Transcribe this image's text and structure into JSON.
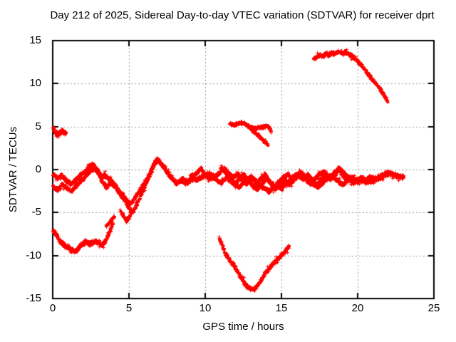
{
  "chart_data": {
    "type": "scatter",
    "title": "Day 212 of 2025, Sidereal Day-to-day VTEC variation (SDTVAR) for receiver dprt",
    "xlabel": "GPS time / hours",
    "ylabel": "SDTVAR / TECUs",
    "xlim": [
      0,
      25
    ],
    "ylim": [
      -15,
      15
    ],
    "x_ticks": [
      0,
      5,
      10,
      15,
      20,
      25
    ],
    "y_ticks": [
      15,
      10,
      5,
      0,
      -5,
      -10,
      -15
    ],
    "x_tick_labels": [
      "0",
      "5",
      "10",
      "15",
      "20",
      "25"
    ],
    "y_tick_labels": [
      "15",
      "10",
      "5",
      "0",
      "-5",
      "-10",
      "-15"
    ],
    "grid": true,
    "legend": "none",
    "marker": "plus",
    "color": "#ff0000",
    "grid_color": "#9a9a9a",
    "axis_color": "#000000",
    "background": "#ffffff",
    "series": [
      {
        "name": "blob-plus4p5",
        "spread": 0.28,
        "points": [
          [
            0,
            4.9
          ],
          [
            0.15,
            4.4
          ],
          [
            0.3,
            4.0
          ],
          [
            0.45,
            4.4
          ],
          [
            0.6,
            4.5
          ],
          [
            0.75,
            4.3
          ],
          [
            0.85,
            4.2
          ]
        ]
      },
      {
        "name": "band-main",
        "spread": 0.24,
        "points": [
          [
            0,
            -0.5
          ],
          [
            0.3,
            -1.0
          ],
          [
            0.6,
            -0.7
          ],
          [
            0.9,
            -1.3
          ],
          [
            1.2,
            -1.6
          ],
          [
            1.5,
            -1.2
          ],
          [
            1.8,
            -0.6
          ],
          [
            2.1,
            -0.2
          ],
          [
            2.4,
            0.4
          ],
          [
            2.6,
            0.7
          ],
          [
            2.8,
            0.3
          ],
          [
            3.0,
            -0.2
          ],
          [
            3.2,
            -0.9
          ],
          [
            3.4,
            -0.6
          ],
          [
            3.7,
            -1.1
          ],
          [
            4.0,
            -1.6
          ],
          [
            4.3,
            -2.3
          ],
          [
            4.6,
            -3.0
          ],
          [
            4.9,
            -3.7
          ],
          [
            5.1,
            -3.9
          ],
          [
            5.4,
            -3.2
          ],
          [
            5.7,
            -2.3
          ],
          [
            6.0,
            -1.5
          ],
          [
            6.3,
            -0.6
          ],
          [
            6.6,
            0.6
          ],
          [
            6.8,
            1.3
          ],
          [
            7.0,
            1.0
          ],
          [
            7.3,
            0.2
          ],
          [
            7.6,
            -0.6
          ],
          [
            7.9,
            -1.2
          ],
          [
            8.2,
            -1.5
          ],
          [
            8.5,
            -1.0
          ],
          [
            8.8,
            -1.4
          ],
          [
            9.1,
            -0.9
          ],
          [
            9.4,
            -0.4
          ],
          [
            9.7,
            0.2
          ],
          [
            10.0,
            -0.6
          ],
          [
            10.3,
            -1.1
          ],
          [
            10.6,
            -0.7
          ],
          [
            10.9,
            -0.4
          ],
          [
            11.2,
            0.2
          ],
          [
            11.5,
            -0.3
          ],
          [
            11.8,
            -0.9
          ],
          [
            12.1,
            -0.4
          ],
          [
            12.4,
            -1.1
          ],
          [
            12.7,
            -1.7
          ],
          [
            13.0,
            -0.9
          ],
          [
            13.3,
            -1.6
          ],
          [
            13.6,
            -1.1
          ],
          [
            13.9,
            -0.5
          ],
          [
            14.2,
            -1.3
          ],
          [
            14.5,
            -2.0
          ],
          [
            14.8,
            -1.4
          ],
          [
            15.1,
            -0.8
          ],
          [
            15.4,
            -0.5
          ],
          [
            15.7,
            -1.3
          ],
          [
            16.0,
            -0.6
          ],
          [
            16.3,
            -0.3
          ],
          [
            16.6,
            -1.1
          ],
          [
            16.9,
            -1.7
          ],
          [
            17.2,
            -1.0
          ],
          [
            17.5,
            -0.4
          ],
          [
            17.8,
            -0.2
          ],
          [
            18.1,
            -0.9
          ],
          [
            18.4,
            -0.4
          ],
          [
            18.7,
            0.1
          ],
          [
            19.0,
            -0.6
          ],
          [
            19.3,
            -1.1
          ],
          [
            19.6,
            -0.8
          ],
          [
            19.9,
            -1.2
          ],
          [
            20.2,
            -0.9
          ],
          [
            20.5,
            -1.2
          ],
          [
            20.8,
            -0.8
          ],
          [
            21.1,
            -1.1
          ],
          [
            21.4,
            -0.8
          ],
          [
            21.7,
            -0.5
          ],
          [
            22.0,
            -0.3
          ],
          [
            22.3,
            -0.6
          ],
          [
            22.6,
            -0.8
          ],
          [
            23.0,
            -0.8
          ]
        ]
      },
      {
        "name": "band-strand2",
        "spread": 0.24,
        "points": [
          [
            0,
            -1.9
          ],
          [
            0.3,
            -2.4
          ],
          [
            0.6,
            -1.7
          ],
          [
            0.9,
            -2.1
          ],
          [
            1.2,
            -2.5
          ],
          [
            1.5,
            -1.9
          ],
          [
            1.8,
            -1.3
          ],
          [
            2.1,
            -0.8
          ],
          [
            2.4,
            -0.2
          ],
          [
            2.7,
            0.2
          ],
          [
            3.0,
            -0.5
          ],
          [
            3.2,
            -1.3
          ],
          [
            3.5,
            -2.0
          ],
          [
            3.8,
            -1.5
          ],
          [
            4.1,
            -2.1
          ],
          [
            4.4,
            -2.8
          ],
          [
            4.7,
            -3.5
          ],
          [
            5.0,
            -4.4
          ],
          [
            5.2,
            -5.0
          ],
          [
            5.5,
            -4.0
          ],
          [
            5.8,
            -2.8
          ],
          [
            6.1,
            -1.6
          ],
          [
            6.4,
            -0.4
          ],
          [
            6.7,
            0.8
          ],
          [
            6.9,
            1.1
          ],
          [
            7.2,
            0.5
          ],
          [
            7.5,
            -0.3
          ],
          [
            7.8,
            -1.0
          ],
          [
            8.1,
            -1.6
          ],
          [
            8.4,
            -1.2
          ],
          [
            8.7,
            -1.6
          ],
          [
            9.0,
            -1.2
          ]
        ]
      },
      {
        "name": "band-strand3",
        "spread": 0.24,
        "points": [
          [
            9.0,
            -0.7
          ],
          [
            9.4,
            -1.2
          ],
          [
            9.8,
            -0.8
          ],
          [
            10.2,
            -0.4
          ],
          [
            10.6,
            -1.0
          ],
          [
            11.0,
            -1.5
          ],
          [
            11.4,
            -0.9
          ],
          [
            11.8,
            -1.5
          ],
          [
            12.2,
            -2.1
          ],
          [
            12.6,
            -1.3
          ],
          [
            13.0,
            -0.8
          ],
          [
            13.4,
            -1.4
          ],
          [
            13.8,
            -2.1
          ],
          [
            14.2,
            -2.5
          ],
          [
            14.6,
            -1.8
          ],
          [
            15.0,
            -2.1
          ],
          [
            15.4,
            -1.4
          ],
          [
            15.8,
            -0.7
          ],
          [
            16.2,
            -0.3
          ],
          [
            16.6,
            -1.0
          ],
          [
            17.0,
            -1.6
          ],
          [
            17.4,
            -2.0
          ],
          [
            17.8,
            -1.3
          ],
          [
            18.2,
            -0.7
          ],
          [
            18.6,
            -1.2
          ],
          [
            19.0,
            -1.7
          ],
          [
            19.4,
            -1.1
          ],
          [
            19.8,
            -1.5
          ],
          [
            20.2,
            -1.2
          ],
          [
            20.6,
            -1.5
          ],
          [
            21.0,
            -1.2
          ],
          [
            21.4,
            -1.0
          ],
          [
            21.8,
            -0.6
          ],
          [
            22.2,
            -0.4
          ],
          [
            22.6,
            -0.7
          ],
          [
            23.0,
            -0.9
          ]
        ]
      },
      {
        "name": "band-strand4",
        "spread": 0.24,
        "points": [
          [
            11.0,
            0.3
          ],
          [
            11.3,
            -0.2
          ],
          [
            11.6,
            -1.0
          ],
          [
            11.9,
            -1.7
          ],
          [
            12.2,
            -1.0
          ],
          [
            12.5,
            -0.5
          ],
          [
            12.8,
            -1.2
          ],
          [
            13.1,
            -1.9
          ],
          [
            13.4,
            -2.3
          ],
          [
            13.7,
            -1.6
          ],
          [
            14.0,
            -1.0
          ],
          [
            14.3,
            -1.6
          ],
          [
            14.6,
            -2.2
          ],
          [
            14.9,
            -1.6
          ],
          [
            15.2,
            -1.1
          ],
          [
            15.5,
            -1.7
          ],
          [
            15.8,
            -1.2
          ],
          [
            16.1,
            -0.6
          ],
          [
            16.4,
            -1.1
          ],
          [
            16.7,
            -0.5
          ],
          [
            17.0,
            -1.2
          ],
          [
            17.3,
            -1.7
          ],
          [
            17.6,
            -1.1
          ],
          [
            17.9,
            -0.6
          ],
          [
            18.2,
            -1.1
          ],
          [
            18.5,
            -0.6
          ],
          [
            18.8,
            0.2
          ],
          [
            19.1,
            -0.4
          ],
          [
            19.4,
            -0.9
          ],
          [
            19.7,
            -1.4
          ],
          [
            20.0,
            -1.1
          ]
        ]
      },
      {
        "name": "low-early",
        "spread": 0.3,
        "points": [
          [
            0,
            -7.0
          ],
          [
            0.2,
            -7.5
          ],
          [
            0.4,
            -8.1
          ],
          [
            0.6,
            -8.6
          ],
          [
            0.8,
            -8.8
          ],
          [
            1.0,
            -9.0
          ],
          [
            1.2,
            -9.3
          ],
          [
            1.4,
            -9.5
          ],
          [
            1.6,
            -9.2
          ],
          [
            1.8,
            -8.8
          ],
          [
            2.0,
            -8.5
          ],
          [
            2.2,
            -8.4
          ],
          [
            2.4,
            -8.6
          ],
          [
            2.6,
            -8.4
          ],
          [
            2.8,
            -8.3
          ],
          [
            3.0,
            -8.5
          ],
          [
            3.2,
            -8.7
          ],
          [
            3.4,
            -8.4
          ],
          [
            3.6,
            -7.7
          ],
          [
            3.8,
            -6.8
          ],
          [
            3.95,
            -6.1
          ]
        ]
      },
      {
        "name": "streak-minus6",
        "spread": 0.22,
        "points": [
          [
            3.5,
            -6.6
          ],
          [
            3.7,
            -6.1
          ],
          [
            3.9,
            -5.7
          ],
          [
            4.05,
            -5.3
          ]
        ]
      },
      {
        "name": "dip-minus5p5",
        "spread": 0.26,
        "points": [
          [
            4.4,
            -4.7
          ],
          [
            4.6,
            -5.3
          ],
          [
            4.8,
            -5.9
          ],
          [
            5.0,
            -5.5
          ],
          [
            5.15,
            -4.8
          ]
        ]
      },
      {
        "name": "fork-upper",
        "spread": 0.2,
        "points": [
          [
            11.6,
            5.4
          ],
          [
            11.8,
            5.2
          ],
          [
            12.0,
            5.3
          ],
          [
            12.3,
            5.5
          ],
          [
            12.6,
            5.3
          ],
          [
            12.9,
            5.0
          ],
          [
            13.2,
            4.8
          ],
          [
            13.5,
            4.9
          ],
          [
            13.8,
            5.0
          ],
          [
            14.0,
            5.1
          ],
          [
            14.2,
            4.9
          ],
          [
            14.3,
            4.4
          ]
        ]
      },
      {
        "name": "fork-lower",
        "spread": 0.2,
        "points": [
          [
            12.9,
            4.9
          ],
          [
            13.1,
            4.6
          ],
          [
            13.4,
            4.1
          ],
          [
            13.7,
            3.6
          ],
          [
            13.9,
            3.2
          ],
          [
            14.1,
            2.9
          ]
        ]
      },
      {
        "name": "top-arc",
        "spread": 0.24,
        "points": [
          [
            17.1,
            12.9
          ],
          [
            17.3,
            13.1
          ],
          [
            17.5,
            13.4
          ],
          [
            17.7,
            13.2
          ],
          [
            17.9,
            13.5
          ],
          [
            18.1,
            13.4
          ],
          [
            18.3,
            13.6
          ],
          [
            18.5,
            13.5
          ],
          [
            18.7,
            13.7
          ],
          [
            19.0,
            13.6
          ],
          [
            19.2,
            13.7
          ],
          [
            19.4,
            13.5
          ],
          [
            19.6,
            13.2
          ],
          [
            19.8,
            12.9
          ],
          [
            20.0,
            12.6
          ],
          [
            20.2,
            12.2
          ],
          [
            20.4,
            11.8
          ],
          [
            20.6,
            11.3
          ],
          [
            20.8,
            10.8
          ],
          [
            21.0,
            10.4
          ],
          [
            21.2,
            10.0
          ],
          [
            21.4,
            9.5
          ],
          [
            21.6,
            9.0
          ],
          [
            21.8,
            8.4
          ],
          [
            21.95,
            7.9
          ]
        ]
      },
      {
        "name": "v-bottom",
        "spread": 0.26,
        "points": [
          [
            10.9,
            -7.9
          ],
          [
            11.1,
            -8.8
          ],
          [
            11.3,
            -9.7
          ],
          [
            11.5,
            -10.3
          ],
          [
            11.7,
            -10.8
          ],
          [
            11.9,
            -11.2
          ],
          [
            12.1,
            -11.8
          ],
          [
            12.3,
            -12.4
          ],
          [
            12.5,
            -13.0
          ],
          [
            12.7,
            -13.5
          ],
          [
            12.9,
            -13.8
          ],
          [
            13.1,
            -13.9
          ],
          [
            13.3,
            -13.7
          ],
          [
            13.5,
            -13.2
          ],
          [
            13.7,
            -12.7
          ],
          [
            13.9,
            -12.1
          ],
          [
            14.1,
            -11.6
          ],
          [
            14.3,
            -11.2
          ],
          [
            14.5,
            -10.8
          ],
          [
            14.7,
            -10.4
          ],
          [
            14.9,
            -10.1
          ],
          [
            15.1,
            -9.7
          ],
          [
            15.3,
            -9.3
          ],
          [
            15.5,
            -8.9
          ]
        ]
      }
    ]
  }
}
